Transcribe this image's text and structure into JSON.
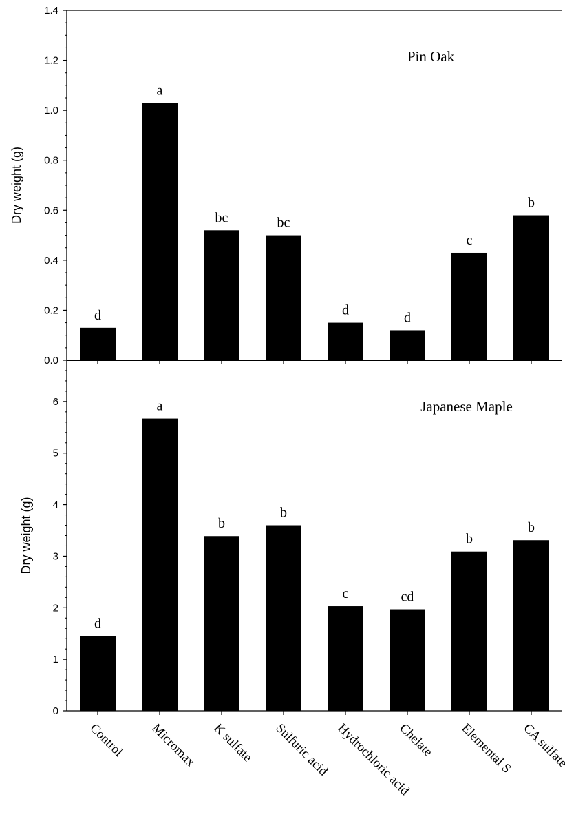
{
  "chart_data": {
    "type": "bar",
    "categories": [
      "Control",
      "Micromax",
      "K sulfate",
      "Sulfuric acid",
      "Hydrochloric acid",
      "Chelate",
      "Elemental S",
      "CA sulfate"
    ],
    "panels": [
      {
        "title": "Pin Oak",
        "ylabel": "Dry weight (g)",
        "ylim": [
          0,
          1.4
        ],
        "yticks": [
          "0.0",
          "0.2",
          "0.4",
          "0.6",
          "0.8",
          "1.0",
          "1.2",
          "1.4"
        ],
        "ytick_values": [
          0,
          0.2,
          0.4,
          0.6,
          0.8,
          1.0,
          1.2,
          1.4
        ],
        "values": [
          0.13,
          1.03,
          0.52,
          0.5,
          0.15,
          0.12,
          0.43,
          0.58
        ],
        "letters": [
          "d",
          "a",
          "bc",
          "bc",
          "d",
          "d",
          "c",
          "b"
        ]
      },
      {
        "title": "Japanese Maple",
        "ylabel": "Dry weight (g)",
        "ylim": [
          0,
          6.8
        ],
        "yticks": [
          "0",
          "1",
          "2",
          "3",
          "4",
          "5",
          "6"
        ],
        "ytick_values": [
          0,
          1,
          2,
          3,
          4,
          5,
          6
        ],
        "values": [
          1.45,
          5.67,
          3.39,
          3.6,
          2.03,
          1.97,
          3.09,
          3.31
        ],
        "letters": [
          "d",
          "a",
          "b",
          "b",
          "c",
          "cd",
          "b",
          "b"
        ]
      }
    ],
    "bar_color": "#000000",
    "grid": false
  }
}
